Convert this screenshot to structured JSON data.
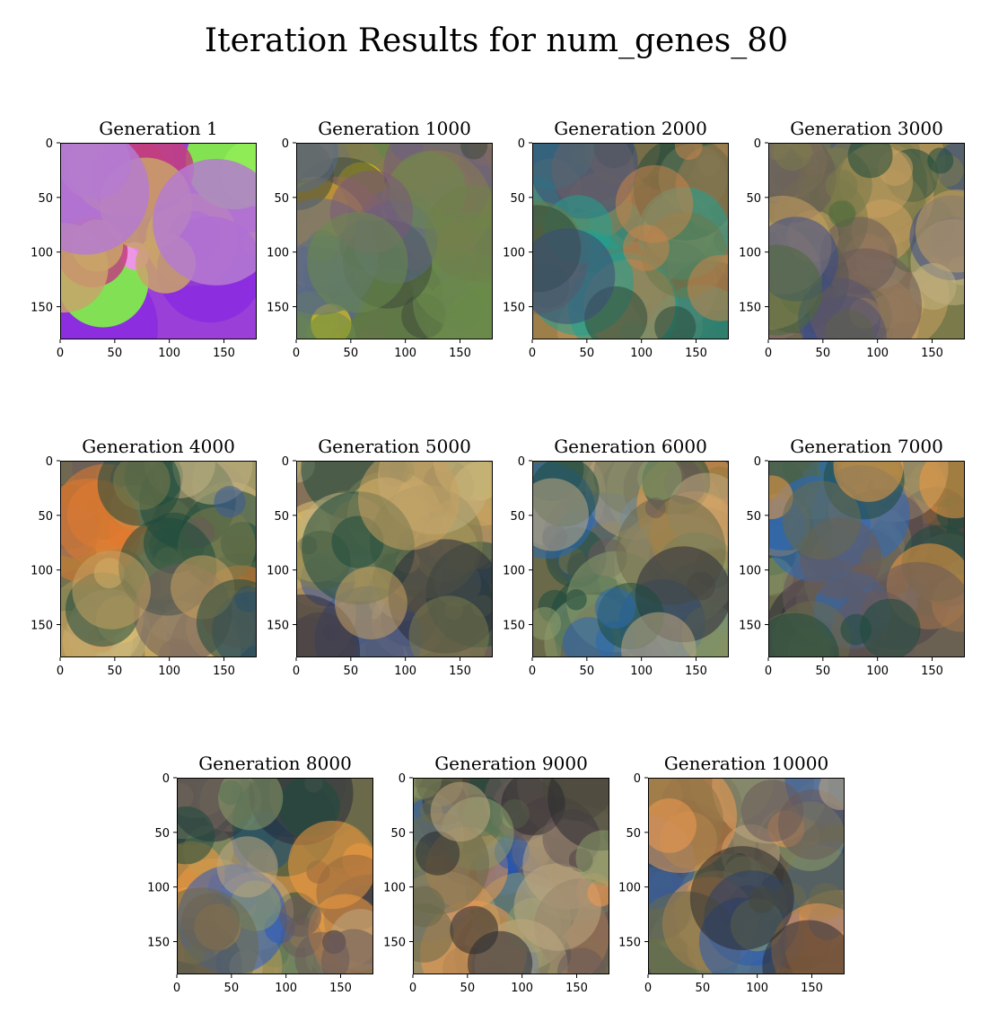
{
  "chart_data": {
    "type": "image_grid",
    "title": "Iteration Results for num_genes_80",
    "panels": [
      {
        "title": "Generation 1",
        "palette": [
          "#9a3fd8",
          "#8a2be2",
          "#ff88ff",
          "#c9a36a",
          "#7fff3a",
          "#c2407f",
          "#b57bd0",
          "#e36ad0"
        ]
      },
      {
        "title": "Generation 1000",
        "palette": [
          "#6f7f4a",
          "#5a6a8a",
          "#8a7a50",
          "#9c6a5a",
          "#6a8a4a",
          "#7a5a7a",
          "#3e4a3a",
          "#ffd700"
        ]
      },
      {
        "title": "Generation 2000",
        "palette": [
          "#6a7a4a",
          "#3a4a7a",
          "#9a7a50",
          "#2a4a3a",
          "#c9844a",
          "#7a6a5a",
          "#20a090",
          "#a8b080"
        ]
      },
      {
        "title": "Generation 3000",
        "palette": [
          "#7a7a4a",
          "#3a4a8a",
          "#c8a060",
          "#1e4a3e",
          "#6a5a5a",
          "#c0b080",
          "#4a6a3a",
          "#d0a060"
        ]
      },
      {
        "title": "Generation 4000",
        "palette": [
          "#7a7a4a",
          "#3a5a9a",
          "#c8a060",
          "#1e4a3e",
          "#6a5a5a",
          "#c0b080",
          "#e0c070",
          "#e07a30"
        ]
      },
      {
        "title": "Generation 5000",
        "palette": [
          "#7a7a4a",
          "#3a5a9a",
          "#c8a060",
          "#1e4a3e",
          "#6a5a5a",
          "#c0b080",
          "#e0c070",
          "#2a2a3a"
        ]
      },
      {
        "title": "Generation 6000",
        "palette": [
          "#6a6a4a",
          "#2a6ab0",
          "#f0a040",
          "#1e4a3e",
          "#6a5a5a",
          "#c0a880",
          "#2a2a3a",
          "#8a9a6a"
        ]
      },
      {
        "title": "Generation 7000",
        "palette": [
          "#6a6a4a",
          "#2a6ac0",
          "#f09a40",
          "#1e4a3e",
          "#6a5a5a",
          "#c0a880",
          "#2a2a3a",
          "#8a9a6a"
        ]
      },
      {
        "title": "Generation 8000",
        "palette": [
          "#6a6a4a",
          "#2a5ac0",
          "#f09a40",
          "#1e4a3e",
          "#6a5a5a",
          "#c0a880",
          "#2a2a3a",
          "#8a9a6a"
        ]
      },
      {
        "title": "Generation 9000",
        "palette": [
          "#6a6a4a",
          "#2a5ab0",
          "#f09a50",
          "#1e4a3e",
          "#6a5a5a",
          "#c0a880",
          "#2a2a2e",
          "#8a9a6a"
        ]
      },
      {
        "title": "Generation 10000",
        "palette": [
          "#6a6a4a",
          "#2a5ab0",
          "#f09a50",
          "#1e4a3e",
          "#6a5a5a",
          "#c0a880",
          "#2a2a2e",
          "#8a9a6a"
        ]
      }
    ],
    "xticks": [
      0,
      50,
      100,
      150
    ],
    "yticks": [
      0,
      50,
      100,
      150
    ],
    "xlim": [
      0,
      180
    ],
    "ylim": [
      180,
      0
    ],
    "grid": false
  }
}
